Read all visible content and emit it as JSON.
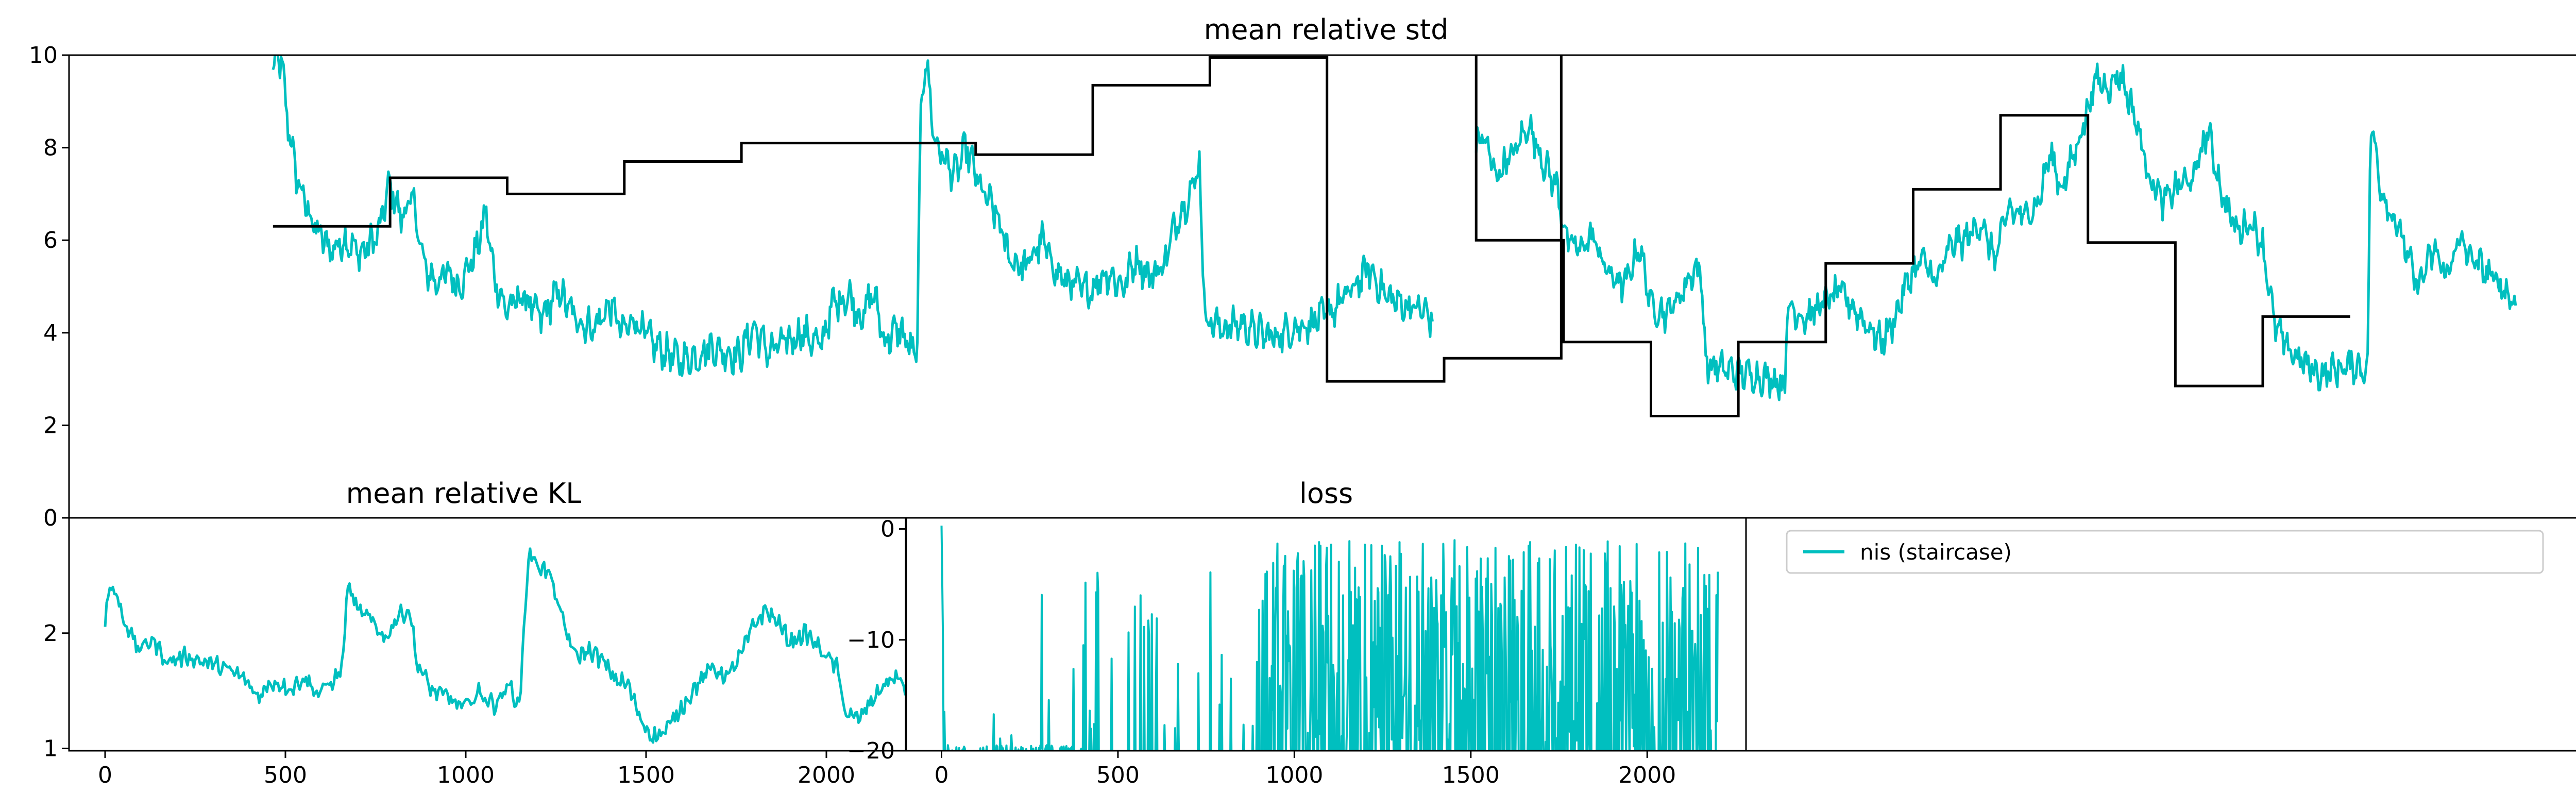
{
  "chart_data": [
    {
      "id": "std",
      "type": "line",
      "title": "mean relative std",
      "xlim": [
        -230,
        3520
      ],
      "ylim": [
        0,
        10
      ],
      "yticks": [
        0,
        2,
        4,
        6,
        8,
        10
      ],
      "xticks": [],
      "colors": {
        "noisy": "#00bfbf",
        "step": "#000000"
      },
      "series": [
        {
          "key": "noisy",
          "style": "noisy",
          "anchors": [
            [
              0,
              9.6
            ],
            [
              12,
              10.0
            ],
            [
              30,
              9.8
            ],
            [
              50,
              8.6
            ],
            [
              80,
              7.4
            ],
            [
              110,
              6.8
            ],
            [
              150,
              6.2
            ],
            [
              200,
              5.8
            ],
            [
              250,
              6.0
            ],
            [
              300,
              5.7
            ],
            [
              360,
              6.1
            ],
            [
              400,
              7.2
            ],
            [
              440,
              6.5
            ],
            [
              480,
              6.9
            ],
            [
              520,
              5.4
            ],
            [
              560,
              5.1
            ],
            [
              600,
              5.3
            ],
            [
              640,
              5.0
            ],
            [
              700,
              5.8
            ],
            [
              730,
              6.6
            ],
            [
              760,
              5.2
            ],
            [
              800,
              4.5
            ],
            [
              860,
              4.8
            ],
            [
              920,
              4.3
            ],
            [
              980,
              4.9
            ],
            [
              1040,
              4.3
            ],
            [
              1100,
              4.1
            ],
            [
              1160,
              4.6
            ],
            [
              1200,
              4.0
            ],
            [
              1240,
              4.3
            ],
            [
              1300,
              3.8
            ],
            [
              1340,
              3.6
            ],
            [
              1400,
              3.4
            ],
            [
              1460,
              3.5
            ],
            [
              1500,
              3.7
            ],
            [
              1540,
              3.6
            ],
            [
              1600,
              3.5
            ],
            [
              1650,
              4.1
            ],
            [
              1700,
              3.6
            ],
            [
              1760,
              3.8
            ],
            [
              1820,
              4.0
            ],
            [
              1880,
              3.7
            ],
            [
              1920,
              4.6
            ],
            [
              1980,
              4.8
            ],
            [
              2020,
              4.3
            ],
            [
              2060,
              4.9
            ],
            [
              2100,
              3.8
            ],
            [
              2150,
              4.1
            ],
            [
              2210,
              3.4
            ],
            [
              2225,
              9.0
            ],
            [
              2240,
              10.0
            ],
            [
              2270,
              8.2
            ],
            [
              2300,
              7.8
            ],
            [
              2340,
              7.4
            ],
            [
              2380,
              8.0
            ],
            [
              2430,
              7.1
            ],
            [
              2480,
              6.6
            ],
            [
              2530,
              5.6
            ],
            [
              2580,
              5.4
            ],
            [
              2640,
              6.0
            ],
            [
              2700,
              5.2
            ],
            [
              2760,
              5.0
            ],
            [
              2800,
              4.9
            ],
            [
              2860,
              5.3
            ],
            [
              2920,
              5.0
            ],
            [
              2960,
              5.6
            ],
            [
              3010,
              5.2
            ],
            [
              3060,
              5.5
            ],
            [
              3100,
              6.4
            ],
            [
              3140,
              6.9
            ],
            [
              3180,
              7.6
            ],
            [
              3200,
              4.3
            ],
            [
              3260,
              4.1
            ],
            [
              3320,
              4.2
            ],
            [
              3380,
              4.0
            ],
            [
              3440,
              3.9
            ],
            [
              3500,
              4.1
            ],
            [
              3560,
              4.2
            ],
            [
              3620,
              4.4
            ],
            [
              3700,
              4.9
            ],
            [
              3760,
              5.4
            ],
            [
              3820,
              4.8
            ],
            [
              3880,
              4.6
            ],
            [
              3940,
              4.5
            ],
            [
              3980,
              4.3
            ]
          ],
          "anchors_right": [
            [
              4130,
              8.0
            ],
            [
              4150,
              8.3
            ],
            [
              4200,
              7.4
            ],
            [
              4260,
              7.9
            ],
            [
              4310,
              8.5
            ],
            [
              4360,
              7.7
            ],
            [
              4410,
              7.1
            ],
            [
              4440,
              6.0
            ],
            [
              4480,
              5.8
            ],
            [
              4530,
              6.1
            ],
            [
              4580,
              5.3
            ],
            [
              4640,
              5.0
            ],
            [
              4690,
              5.9
            ],
            [
              4730,
              4.6
            ],
            [
              4780,
              4.4
            ],
            [
              4830,
              4.8
            ],
            [
              4870,
              5.3
            ],
            [
              4900,
              5.4
            ],
            [
              4920,
              3.3
            ],
            [
              4990,
              3.2
            ],
            [
              5060,
              3.1
            ],
            [
              5140,
              3.0
            ],
            [
              5190,
              2.9
            ],
            [
              5200,
              4.6
            ],
            [
              5260,
              4.3
            ],
            [
              5330,
              4.7
            ],
            [
              5380,
              4.9
            ],
            [
              5430,
              4.5
            ],
            [
              5480,
              4.1
            ],
            [
              5520,
              3.8
            ],
            [
              5560,
              4.2
            ],
            [
              5610,
              5.1
            ],
            [
              5660,
              5.6
            ],
            [
              5710,
              5.1
            ],
            [
              5760,
              5.9
            ],
            [
              5810,
              6.0
            ],
            [
              5860,
              6.4
            ],
            [
              5910,
              5.6
            ],
            [
              5960,
              6.7
            ],
            [
              6000,
              6.5
            ],
            [
              6060,
              6.8
            ],
            [
              6100,
              7.9
            ],
            [
              6140,
              7.1
            ],
            [
              6200,
              8.2
            ],
            [
              6260,
              9.5
            ],
            [
              6300,
              9.3
            ],
            [
              6340,
              9.6
            ],
            [
              6390,
              8.7
            ],
            [
              6440,
              7.4
            ],
            [
              6490,
              6.8
            ],
            [
              6540,
              7.2
            ],
            [
              6590,
              7.3
            ],
            [
              6640,
              8.4
            ],
            [
              6690,
              7.0
            ],
            [
              6740,
              6.2
            ],
            [
              6790,
              6.4
            ],
            [
              6830,
              5.9
            ],
            [
              6870,
              4.2
            ],
            [
              6910,
              3.7
            ],
            [
              6960,
              3.4
            ],
            [
              7020,
              3.1
            ],
            [
              7080,
              3.2
            ],
            [
              7140,
              3.3
            ],
            [
              7190,
              3.2
            ],
            [
              7200,
              8.6
            ],
            [
              7240,
              7.0
            ],
            [
              7300,
              6.2
            ],
            [
              7360,
              5.0
            ],
            [
              7420,
              5.8
            ],
            [
              7460,
              5.2
            ],
            [
              7500,
              6.0
            ],
            [
              7550,
              5.6
            ],
            [
              7600,
              5.3
            ],
            [
              7650,
              5.0
            ],
            [
              7700,
              4.6
            ]
          ]
        },
        {
          "key": "step",
          "style": "step",
          "steps": [
            [
              0,
              6.3
            ],
            [
              300,
              7.35
            ],
            [
              600,
              7.0
            ],
            [
              900,
              7.7
            ],
            [
              1200,
              8.1
            ],
            [
              1800,
              7.85
            ],
            [
              2100,
              9.35
            ],
            [
              2400,
              9.95
            ],
            [
              2700,
              2.95
            ],
            [
              3000,
              3.45
            ],
            [
              3300,
              10.0
            ]
          ],
          "steps_end": 3600,
          "steps_right": [
            [
              4100,
              6.0
            ],
            [
              4400,
              3.8
            ],
            [
              4700,
              2.2
            ],
            [
              5000,
              3.8
            ],
            [
              5300,
              5.5
            ],
            [
              5600,
              7.1
            ],
            [
              5900,
              8.7
            ],
            [
              6200,
              5.95
            ],
            [
              6500,
              2.85
            ],
            [
              6800,
              4.35
            ]
          ],
          "steps_right_end": 7100,
          "right_offset_data": 4100
        }
      ]
    },
    {
      "id": "kl",
      "type": "line",
      "title": "mean relative KL",
      "xlim": [
        -100,
        2220
      ],
      "ylim": [
        0.98,
        3.0
      ],
      "yticks": [
        1,
        2,
        0
      ],
      "ytick_positions": [
        1.0,
        2.0,
        3.0
      ],
      "xticks": [
        0,
        500,
        1000,
        1500,
        2000
      ],
      "colors": {
        "line": "#00bfbf"
      },
      "series": [
        {
          "key": "kl",
          "anchors": [
            [
              0,
              2.1
            ],
            [
              15,
              2.42
            ],
            [
              40,
              2.3
            ],
            [
              70,
              2.05
            ],
            [
              110,
              1.85
            ],
            [
              150,
              1.95
            ],
            [
              200,
              1.75
            ],
            [
              260,
              1.8
            ],
            [
              320,
              1.75
            ],
            [
              380,
              1.7
            ],
            [
              440,
              1.62
            ],
            [
              490,
              1.45
            ],
            [
              540,
              1.58
            ],
            [
              600,
              1.52
            ],
            [
              640,
              1.62
            ],
            [
              680,
              1.48
            ],
            [
              720,
              1.55
            ],
            [
              760,
              1.68
            ],
            [
              780,
              2.42
            ],
            [
              810,
              2.2
            ],
            [
              860,
              2.1
            ],
            [
              900,
              1.95
            ],
            [
              940,
              2.15
            ],
            [
              980,
              2.2
            ],
            [
              1000,
              1.75
            ],
            [
              1050,
              1.5
            ],
            [
              1100,
              1.45
            ],
            [
              1150,
              1.35
            ],
            [
              1200,
              1.48
            ],
            [
              1250,
              1.38
            ],
            [
              1300,
              1.55
            ],
            [
              1330,
              1.35
            ],
            [
              1360,
              2.68
            ],
            [
              1390,
              2.6
            ],
            [
              1430,
              2.5
            ],
            [
              1470,
              2.1
            ],
            [
              1510,
              1.8
            ],
            [
              1560,
              1.85
            ],
            [
              1600,
              1.75
            ],
            [
              1640,
              1.6
            ],
            [
              1680,
              1.55
            ],
            [
              1720,
              1.25
            ],
            [
              1760,
              1.1
            ],
            [
              1800,
              1.15
            ],
            [
              1850,
              1.35
            ],
            [
              1900,
              1.55
            ],
            [
              1950,
              1.7
            ],
            [
              2000,
              1.62
            ],
            [
              2040,
              1.8
            ],
            [
              2080,
              2.05
            ],
            [
              2120,
              2.2
            ],
            [
              2160,
              2.1
            ],
            [
              2200,
              1.92
            ],
            [
              2250,
              2.0
            ],
            [
              2300,
              1.85
            ],
            [
              2350,
              1.7
            ],
            [
              2380,
              1.3
            ],
            [
              2420,
              1.25
            ],
            [
              2460,
              1.4
            ],
            [
              2500,
              1.55
            ],
            [
              2540,
              1.62
            ],
            [
              2570,
              1.52
            ]
          ],
          "x_scale": 0.8633
        }
      ]
    },
    {
      "id": "loss",
      "type": "line",
      "title": "loss",
      "xlim": [
        -100,
        2280
      ],
      "ylim": [
        -20,
        1
      ],
      "yticks": [
        0,
        -10,
        -20
      ],
      "xticks": [
        0,
        500,
        1000,
        1500,
        2000
      ],
      "colors": {
        "line": "#00bfbf"
      },
      "series": [
        {
          "key": "loss",
          "x_end": 2200
        }
      ]
    },
    {
      "id": "legend",
      "type": "legend",
      "entries": [
        {
          "name": "nis (staircase)",
          "color": "#00bfbf"
        }
      ]
    }
  ]
}
